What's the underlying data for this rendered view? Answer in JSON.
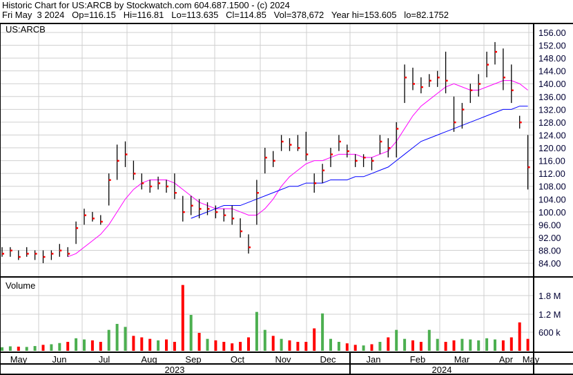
{
  "header": {
    "title": "Historic Chart for US:ARCB by Stockwatch.com 604.687.1500 - (c) 2024",
    "quote": "Fri May  3 2024   Op=116.15   Hi=116.81   Lo=113.635   Cl=114.85   Vol=378,672   Year hi=153.605   lo=82.1752"
  },
  "chart_data": [
    {
      "type": "ohlc",
      "title": "US:ARCB",
      "ylim": [
        82,
        160
      ],
      "y_ticks": [
        "156.00",
        "152.00",
        "148.00",
        "144.00",
        "140.00",
        "136.00",
        "132.00",
        "128.00",
        "124.00",
        "120.00",
        "116.00",
        "112.00",
        "108.00",
        "104.00",
        "100.00",
        "96.00",
        "92.00",
        "88.00",
        "84.00"
      ],
      "x_months": [
        "May",
        "Jun",
        "Jul",
        "Aug",
        "Sep",
        "Oct",
        "Nov",
        "Dec",
        "Jan",
        "Feb",
        "Mar",
        "Apr",
        "May"
      ],
      "x_years": [
        "2023",
        "2024"
      ],
      "grid": true,
      "bars": [
        [
          89,
          86,
          87
        ],
        [
          89,
          86,
          88
        ],
        [
          88,
          85,
          86
        ],
        [
          89,
          86,
          87
        ],
        [
          88,
          85,
          87
        ],
        [
          88,
          84,
          86
        ],
        [
          88,
          85,
          87
        ],
        [
          90,
          86,
          88
        ],
        [
          89,
          86,
          87
        ],
        [
          97,
          90,
          95
        ],
        [
          101,
          96,
          99
        ],
        [
          100,
          97,
          98
        ],
        [
          99,
          96,
          97
        ],
        [
          112,
          102,
          110
        ],
        [
          121,
          110,
          116
        ],
        [
          122,
          114,
          118
        ],
        [
          116,
          110,
          112
        ],
        [
          112,
          107,
          109
        ],
        [
          110,
          106,
          108
        ],
        [
          111,
          107,
          109
        ],
        [
          110,
          106,
          108
        ],
        [
          112,
          104,
          106
        ],
        [
          105,
          97,
          100
        ],
        [
          105,
          99,
          102
        ],
        [
          104,
          98,
          101
        ],
        [
          103,
          99,
          101
        ],
        [
          102,
          98,
          100
        ],
        [
          101,
          97,
          99
        ],
        [
          102,
          96,
          98
        ],
        [
          98,
          92,
          94
        ],
        [
          93,
          87,
          89
        ],
        [
          110,
          96,
          106
        ],
        [
          120,
          112,
          117
        ],
        [
          119,
          114,
          116
        ],
        [
          124,
          119,
          122
        ],
        [
          123,
          119,
          121
        ],
        [
          124,
          119,
          120
        ],
        [
          125,
          116,
          118
        ],
        [
          112,
          106,
          109
        ],
        [
          115,
          109,
          113
        ],
        [
          120,
          114,
          118
        ],
        [
          124,
          119,
          122
        ],
        [
          121,
          117,
          119
        ],
        [
          118,
          114,
          116
        ],
        [
          118,
          114,
          117
        ],
        [
          117,
          113,
          116
        ],
        [
          124,
          118,
          122
        ],
        [
          123,
          117,
          120
        ],
        [
          128,
          117,
          126
        ],
        [
          146,
          134,
          142
        ],
        [
          145,
          138,
          140
        ],
        [
          142,
          137,
          139
        ],
        [
          143,
          139,
          141
        ],
        [
          144,
          139,
          142
        ],
        [
          150,
          137,
          141
        ],
        [
          136,
          125,
          128
        ],
        [
          134,
          126,
          132
        ],
        [
          140,
          134,
          138
        ],
        [
          143,
          136,
          140
        ],
        [
          150,
          142,
          146
        ],
        [
          153,
          146,
          150
        ],
        [
          151,
          138,
          142
        ],
        [
          146,
          134,
          138
        ],
        [
          130,
          126,
          128
        ],
        [
          124,
          107,
          114
        ]
      ],
      "ma_short": {
        "color": "#ff00ff",
        "values": [
          null,
          null,
          null,
          null,
          null,
          null,
          null,
          null,
          86,
          87,
          89,
          91,
          93,
          96,
          100,
          104,
          107,
          109,
          110,
          110,
          110,
          109,
          107,
          105,
          103,
          102,
          101,
          101,
          101,
          100,
          99,
          99,
          101,
          104,
          108,
          111,
          113,
          115,
          116,
          116,
          117,
          118,
          118,
          118,
          117,
          117,
          118,
          119,
          122,
          126,
          130,
          133,
          135,
          137,
          139,
          140,
          139,
          138,
          138,
          139,
          140,
          141,
          141,
          140,
          138
        ]
      },
      "ma_long": {
        "color": "#0000ff",
        "values": [
          null,
          null,
          null,
          null,
          null,
          null,
          null,
          null,
          null,
          null,
          null,
          null,
          null,
          null,
          null,
          null,
          null,
          null,
          null,
          null,
          null,
          null,
          null,
          98,
          99,
          100,
          101,
          102,
          102,
          102,
          103,
          104,
          105,
          106,
          107,
          108,
          108,
          109,
          109,
          109,
          110,
          110,
          110,
          111,
          111,
          112,
          113,
          114,
          116,
          118,
          120,
          122,
          123,
          124,
          125,
          126,
          127,
          128,
          129,
          130,
          131,
          132,
          132,
          133,
          133
        ]
      }
    },
    {
      "type": "bar",
      "title": "Volume",
      "y_ticks": [
        "1.8 M",
        "1.2 M",
        "600 k"
      ],
      "up_color": "#4caf50",
      "down_color": "#ff0000",
      "values_k": [
        120,
        150,
        140,
        130,
        160,
        200,
        220,
        260,
        300,
        420,
        380,
        350,
        300,
        700,
        900,
        800,
        500,
        450,
        400,
        350,
        380,
        300,
        2200,
        1200,
        600,
        400,
        350,
        300,
        250,
        300,
        450,
        1300,
        700,
        500,
        400,
        350,
        300,
        300,
        750,
        1250,
        400,
        300,
        250,
        200,
        180,
        220,
        300,
        450,
        700,
        400,
        350,
        300,
        700,
        400,
        300,
        350,
        400,
        380,
        350,
        420,
        380,
        350,
        450,
        950,
        400
      ]
    }
  ]
}
